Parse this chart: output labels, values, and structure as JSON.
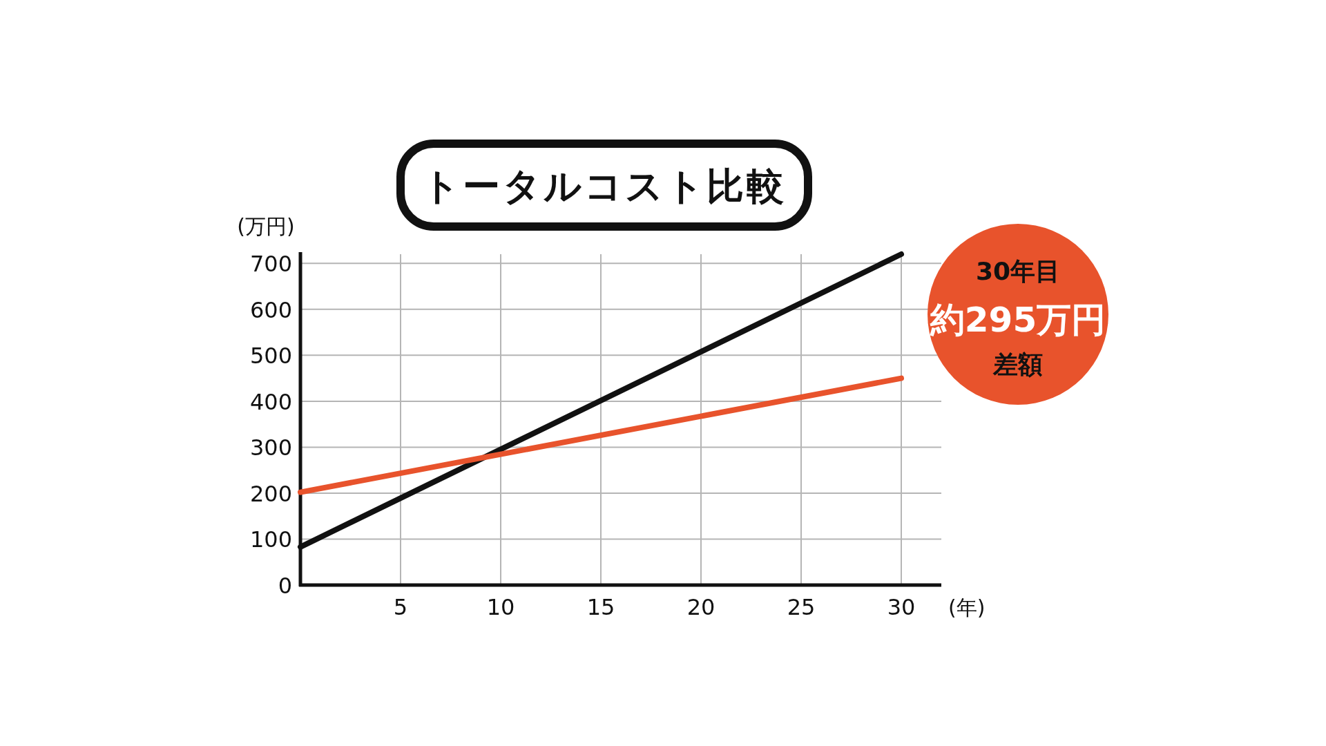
{
  "chart_data": {
    "type": "line",
    "title": "トータルコスト比較",
    "xlabel": "(年)",
    "ylabel": "(万円)",
    "x": [
      0,
      30
    ],
    "series": [
      {
        "color": "#111111",
        "values": [
          83,
          720
        ]
      },
      {
        "color": "#e8532c",
        "values": [
          202,
          450
        ]
      }
    ],
    "xlim": [
      0,
      32
    ],
    "ylim": [
      0,
      720
    ],
    "xticks": [
      5,
      10,
      15,
      20,
      25,
      30
    ],
    "yticks": [
      0,
      100,
      200,
      300,
      400,
      500,
      600,
      700
    ],
    "grid": true,
    "annotations": [
      "30年目",
      "約295万円",
      "差額"
    ]
  }
}
